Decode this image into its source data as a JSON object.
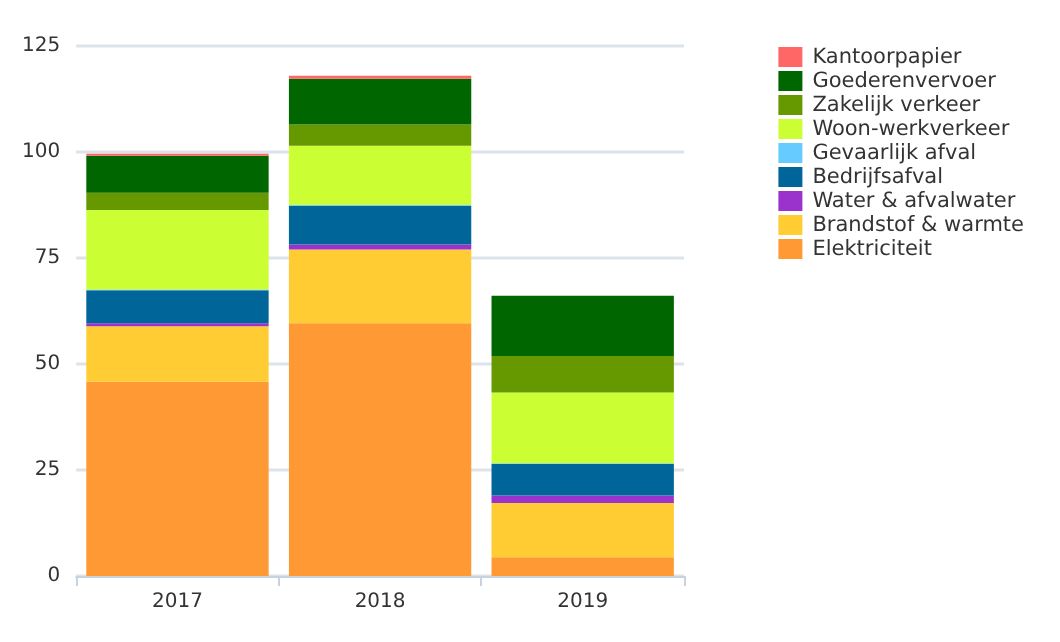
{
  "chart_data": {
    "type": "bar",
    "stacked": true,
    "categories": [
      "2017",
      "2018",
      "2019"
    ],
    "series": [
      {
        "name": "Elektriciteit",
        "color": "#ff9933",
        "values": [
          45.8,
          59.6,
          4.4
        ]
      },
      {
        "name": "Brandstof & warmte",
        "color": "#ffcc33",
        "values": [
          13.1,
          17.4,
          12.8
        ]
      },
      {
        "name": "Water & afvalwater",
        "color": "#9933cc",
        "values": [
          0.7,
          1.2,
          1.8
        ]
      },
      {
        "name": "Bedrijfsafval",
        "color": "#006699",
        "values": [
          7.8,
          9.1,
          7.5
        ]
      },
      {
        "name": "Gevaarlijk afval",
        "color": "#66ccff",
        "values": [
          0.2,
          0.2,
          0.1
        ]
      },
      {
        "name": "Woon-werkverkeer",
        "color": "#ccff33",
        "values": [
          18.7,
          14.0,
          16.7
        ]
      },
      {
        "name": "Zakelijk verkeer",
        "color": "#669900",
        "values": [
          4.1,
          5.0,
          8.6
        ]
      },
      {
        "name": "Goederenvervoer",
        "color": "#006600",
        "values": [
          8.7,
          10.8,
          14.2
        ]
      },
      {
        "name": "Kantoorpapier",
        "color": "#ff6666",
        "values": [
          0.5,
          0.7,
          0
        ]
      }
    ],
    "ylim": [
      0,
      125
    ],
    "yticks": [
      0,
      25,
      50,
      75,
      100,
      125
    ],
    "grid": "y",
    "legend": "right"
  }
}
